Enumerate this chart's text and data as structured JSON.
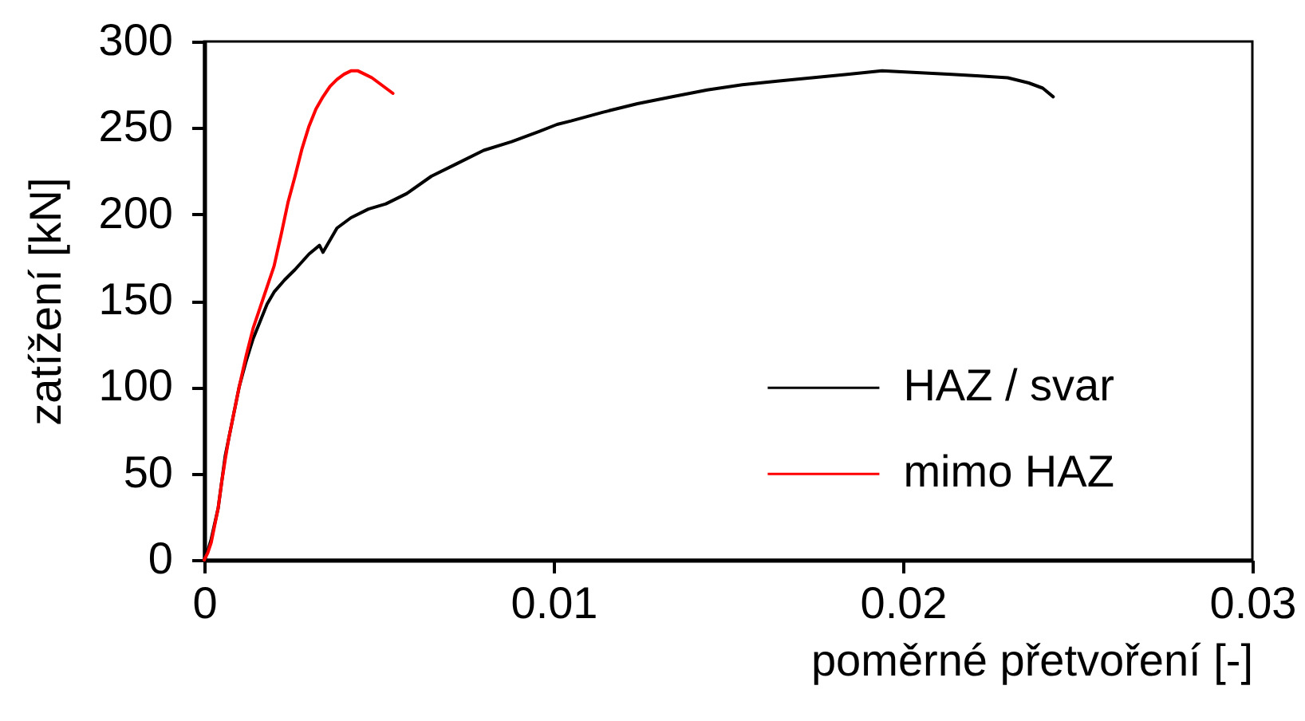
{
  "chart_data": {
    "type": "line",
    "xlabel": "poměrné přetvoření [-]",
    "ylabel": "zatížení [kN]",
    "xlim": [
      0,
      0.03
    ],
    "xticks": [
      0,
      0.01,
      0.02,
      0.03
    ],
    "ylim": [
      0,
      300
    ],
    "yticks": [
      0,
      50,
      100,
      150,
      200,
      250,
      300
    ],
    "legend": "bottom right",
    "line_style": "solid",
    "series": [
      {
        "name": "HAZ / svar",
        "color": "#000000",
        "x": [
          0,
          0.0001,
          0.0002,
          0.0004,
          0.0006,
          0.0008,
          0.001,
          0.0012,
          0.0014,
          0.0016,
          0.0018,
          0.002,
          0.0023,
          0.0026,
          0.003,
          0.0033,
          0.0034,
          0.0038,
          0.0042,
          0.0047,
          0.0052,
          0.0058,
          0.0065,
          0.0072,
          0.008,
          0.0088,
          0.0096,
          0.0101,
          0.0105,
          0.0114,
          0.0124,
          0.0134,
          0.0144,
          0.0154,
          0.0164,
          0.0174,
          0.0184,
          0.0194,
          0.0204,
          0.0214,
          0.0222,
          0.023,
          0.0236,
          0.024,
          0.0243
        ],
        "values": [
          0,
          5,
          12,
          30,
          60,
          80,
          100,
          115,
          128,
          138,
          148,
          155,
          162,
          168,
          177,
          182,
          178,
          192,
          198,
          203,
          206,
          212,
          222,
          229,
          237,
          242,
          248,
          252,
          254,
          259,
          264,
          268,
          272,
          275,
          277,
          279,
          281,
          283,
          282,
          281,
          280,
          279,
          276,
          273,
          268
        ]
      },
      {
        "name": "mimo HAZ",
        "color": "#ff0000",
        "x": [
          0,
          0.0001,
          0.0002,
          0.0003,
          0.0004,
          0.0005,
          0.0006,
          0.0007,
          0.0008,
          0.0009,
          0.001,
          0.0012,
          0.0014,
          0.0016,
          0.0018,
          0.002,
          0.0022,
          0.0024,
          0.0026,
          0.0028,
          0.003,
          0.0032,
          0.0034,
          0.0036,
          0.0038,
          0.004,
          0.0042,
          0.0044,
          0.0046,
          0.0048,
          0.005,
          0.0052,
          0.0054
        ],
        "values": [
          0,
          4,
          10,
          20,
          30,
          45,
          58,
          70,
          80,
          90,
          100,
          118,
          134,
          146,
          158,
          170,
          188,
          207,
          222,
          238,
          251,
          261,
          268,
          274,
          278,
          281,
          283,
          283,
          281,
          279,
          276,
          273,
          270
        ]
      }
    ]
  }
}
